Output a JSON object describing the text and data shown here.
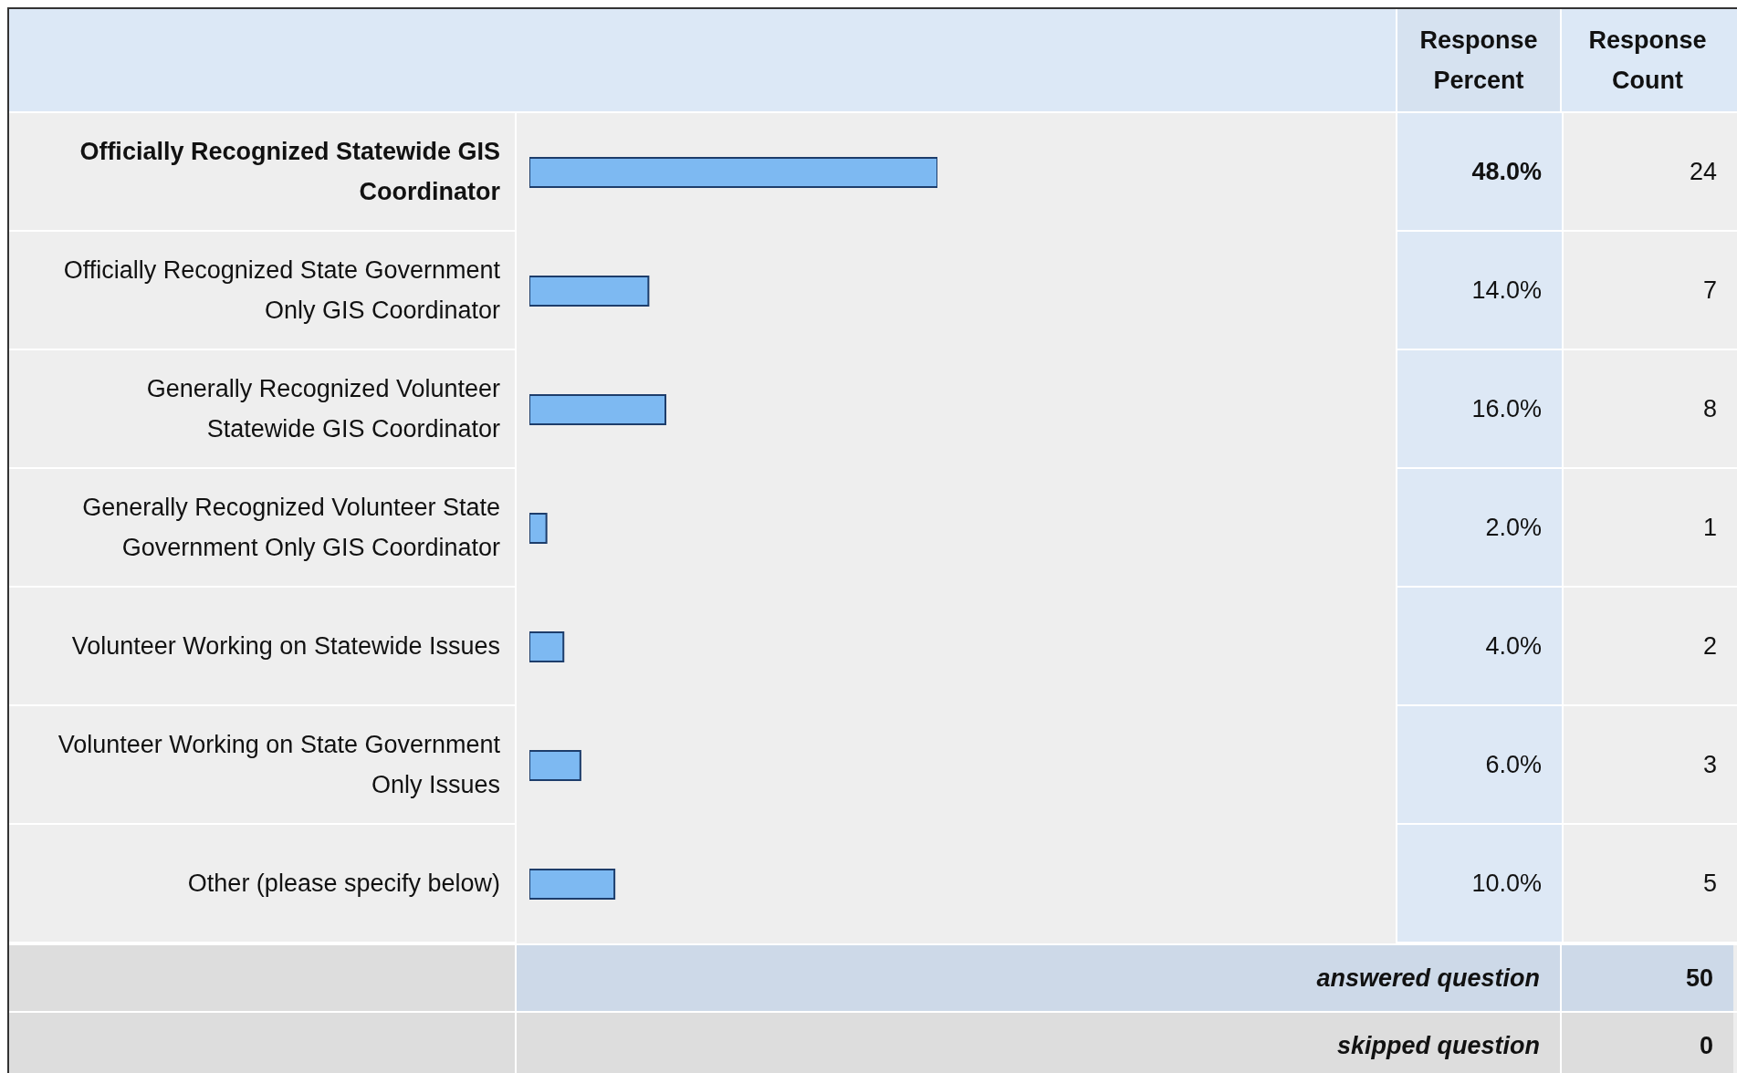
{
  "chart_data": {
    "type": "bar",
    "orientation": "horizontal",
    "categories": [
      "Officially Recognized Statewide GIS Coordinator",
      "Officially Recognized State Government Only GIS Coordinator",
      "Generally Recognized Volunteer Statewide GIS Coordinator",
      "Generally Recognized Volunteer State Government Only GIS Coordinator",
      "Volunteer Working on Statewide Issues",
      "Volunteer Working on State Government Only Issues",
      "Other (please specify below)"
    ],
    "values": [
      48,
      14,
      16,
      2,
      4,
      6,
      10
    ],
    "value_labels": [
      "48.0%",
      "14.0%",
      "16.0%",
      "2.0%",
      "4.0%",
      "6.0%",
      "10.0%"
    ],
    "color": "#7db9f2",
    "tick_labels": false,
    "annotations": [
      "Response Percent",
      "Response Count",
      "answered question",
      "50",
      "skipped question",
      "0",
      "24",
      "7",
      "8",
      "1",
      "2",
      "3",
      "5"
    ]
  }
}
